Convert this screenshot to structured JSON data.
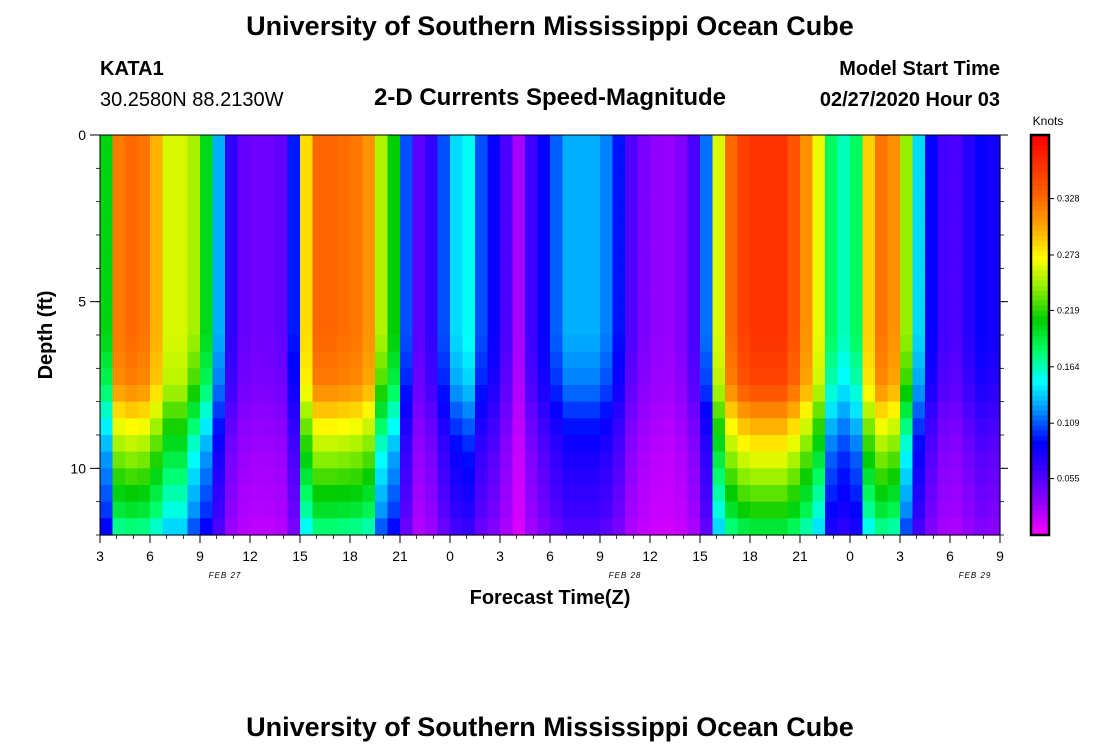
{
  "title": "University of Southern Mississippi Ocean Cube",
  "footer_title": "University of Southern Mississippi Ocean Cube",
  "station": {
    "name": "KATA1",
    "coords": "30.2580N 88.2130W"
  },
  "subtitle": "2-D Currents Speed-Magnitude",
  "model": {
    "label": "Model Start Time",
    "time": "02/27/2020 Hour 03"
  },
  "chart_data": {
    "type": "heatmap",
    "title": "2-D Currents Speed-Magnitude",
    "xlabel": "Forecast Time(Z)",
    "ylabel": "Depth (ft)",
    "x_start_hour": 3,
    "x_end_hour": 57,
    "x_tick_labels": [
      "3",
      "6",
      "9",
      "12",
      "15",
      "18",
      "21",
      "0",
      "3",
      "6",
      "9",
      "12",
      "15",
      "18",
      "21",
      "0",
      "3",
      "6",
      "9"
    ],
    "day_labels": [
      {
        "label": "FEB 27",
        "hour": 12
      },
      {
        "label": "FEB 28",
        "hour": 36
      },
      {
        "label": "FEB 29",
        "hour": 57
      }
    ],
    "ylim": [
      0,
      12
    ],
    "y_ticks": [
      0,
      5,
      10
    ],
    "y_minor_ticks": [
      0,
      1,
      2,
      3,
      4,
      5,
      6,
      7,
      8,
      9,
      10,
      11,
      12
    ],
    "colorbar": {
      "unit": "Knots",
      "min": 0.0,
      "max": 0.39,
      "ticks": [
        0.055,
        0.109,
        0.164,
        0.219,
        0.273,
        0.328
      ],
      "tick_labels": [
        "0.055",
        "0.109",
        "0.164",
        "0.219",
        "0.273",
        "0.328"
      ],
      "colors": [
        "#ff00ff",
        "#9900ff",
        "#4400ff",
        "#0000ff",
        "#0088ff",
        "#00ffff",
        "#00ff66",
        "#00cc00",
        "#88ee00",
        "#ffff00",
        "#ffaa00",
        "#ff6600",
        "#ff3300",
        "#ff0000"
      ]
    },
    "surface_profile_hours": [
      3,
      3.5,
      4,
      5,
      6,
      7,
      8,
      9,
      9.5,
      10,
      11,
      11.5,
      12,
      13,
      14,
      14.5,
      15,
      15.5,
      16,
      17,
      19,
      20,
      21,
      21.5,
      22,
      23,
      24,
      25,
      26,
      27,
      27.5,
      28,
      29,
      30,
      31,
      32,
      33,
      34,
      35,
      36,
      37,
      38,
      39,
      39.5,
      40,
      41,
      42,
      44,
      45,
      46,
      46.5,
      47,
      48,
      48.5,
      49,
      50,
      51,
      52,
      53,
      54,
      55,
      56,
      56.5,
      57
    ],
    "surface_profile_values": [
      0.19,
      0.21,
      0.32,
      0.33,
      0.32,
      0.26,
      0.26,
      0.24,
      0.19,
      0.14,
      0.06,
      0.05,
      0.045,
      0.045,
      0.05,
      0.07,
      0.17,
      0.32,
      0.33,
      0.33,
      0.32,
      0.24,
      0.19,
      0.08,
      0.05,
      0.07,
      0.13,
      0.16,
      0.1,
      0.08,
      0.05,
      0.02,
      0.07,
      0.1,
      0.13,
      0.13,
      0.13,
      0.1,
      0.05,
      0.035,
      0.03,
      0.04,
      0.07,
      0.13,
      0.25,
      0.34,
      0.36,
      0.36,
      0.33,
      0.28,
      0.22,
      0.17,
      0.16,
      0.19,
      0.28,
      0.33,
      0.3,
      0.15,
      0.08,
      0.05,
      0.07,
      0.09,
      0.1,
      0.03
    ],
    "depth_profile_ft": [
      0,
      6,
      7.5,
      8.5,
      9.5,
      10.5,
      11.5,
      12
    ],
    "depth_factor_high": [
      1,
      1,
      0.97,
      0.85,
      0.75,
      0.66,
      0.58,
      0.5
    ],
    "depth_factor_mid": [
      1,
      1,
      0.9,
      0.75,
      0.62,
      0.55,
      0.48,
      0.4
    ]
  }
}
